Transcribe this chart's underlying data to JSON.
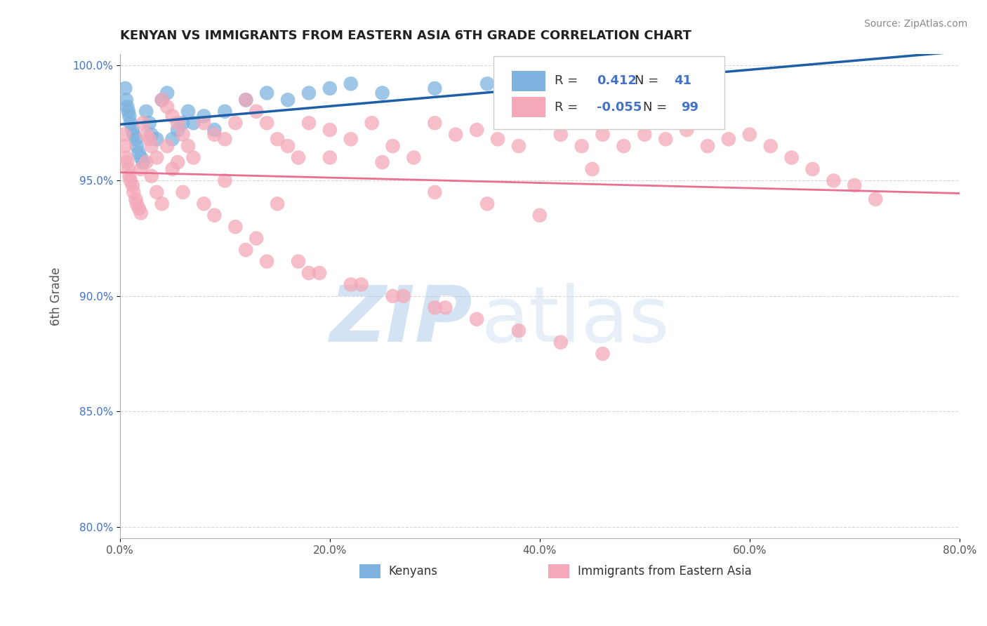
{
  "title": "KENYAN VS IMMIGRANTS FROM EASTERN ASIA 6TH GRADE CORRELATION CHART",
  "source": "Source: ZipAtlas.com",
  "ylabel": "6th Grade",
  "xlim": [
    0.0,
    0.8
  ],
  "ylim": [
    0.795,
    1.005
  ],
  "xticks": [
    0.0,
    0.2,
    0.4,
    0.6,
    0.8
  ],
  "xtick_labels": [
    "0.0%",
    "20.0%",
    "40.0%",
    "60.0%",
    "80.0%"
  ],
  "yticks": [
    0.8,
    0.85,
    0.9,
    0.95,
    1.0
  ],
  "ytick_labels": [
    "80.0%",
    "85.0%",
    "90.0%",
    "95.0%",
    "100.0%"
  ],
  "legend_labels": [
    "Kenyans",
    "Immigrants from Eastern Asia"
  ],
  "blue_R": 0.412,
  "blue_N": 41,
  "pink_R": -0.055,
  "pink_N": 99,
  "blue_color": "#7EB3E0",
  "pink_color": "#F4A8B8",
  "blue_line_color": "#1F5FA6",
  "pink_line_color": "#E87090",
  "watermark_zip": "ZIP",
  "watermark_atlas": "atlas",
  "blue_x": [
    0.005,
    0.006,
    0.007,
    0.008,
    0.009,
    0.01,
    0.012,
    0.013,
    0.015,
    0.016,
    0.018,
    0.02,
    0.022,
    0.025,
    0.028,
    0.03,
    0.035,
    0.04,
    0.045,
    0.05,
    0.055,
    0.06,
    0.065,
    0.07,
    0.08,
    0.09,
    0.1,
    0.12,
    0.14,
    0.16,
    0.18,
    0.2,
    0.22,
    0.25,
    0.3,
    0.35,
    0.38,
    0.4,
    0.45,
    0.5,
    0.55
  ],
  "blue_y": [
    0.99,
    0.985,
    0.982,
    0.98,
    0.978,
    0.975,
    0.972,
    0.97,
    0.968,
    0.965,
    0.962,
    0.96,
    0.958,
    0.98,
    0.975,
    0.97,
    0.968,
    0.985,
    0.988,
    0.968,
    0.972,
    0.975,
    0.98,
    0.975,
    0.978,
    0.972,
    0.98,
    0.985,
    0.988,
    0.985,
    0.988,
    0.99,
    0.992,
    0.988,
    0.99,
    0.992,
    0.988,
    0.99,
    0.985,
    0.988,
    0.992
  ],
  "pink_x": [
    0.004,
    0.005,
    0.006,
    0.007,
    0.008,
    0.009,
    0.01,
    0.012,
    0.013,
    0.015,
    0.016,
    0.018,
    0.02,
    0.022,
    0.025,
    0.028,
    0.03,
    0.035,
    0.04,
    0.045,
    0.05,
    0.055,
    0.06,
    0.065,
    0.07,
    0.08,
    0.09,
    0.1,
    0.11,
    0.12,
    0.13,
    0.14,
    0.15,
    0.16,
    0.17,
    0.18,
    0.2,
    0.22,
    0.24,
    0.26,
    0.28,
    0.3,
    0.32,
    0.34,
    0.36,
    0.38,
    0.4,
    0.42,
    0.44,
    0.46,
    0.48,
    0.5,
    0.52,
    0.54,
    0.56,
    0.58,
    0.6,
    0.62,
    0.64,
    0.66,
    0.68,
    0.7,
    0.72,
    0.02,
    0.025,
    0.03,
    0.035,
    0.04,
    0.045,
    0.05,
    0.055,
    0.06,
    0.1,
    0.15,
    0.2,
    0.25,
    0.3,
    0.35,
    0.4,
    0.45,
    0.12,
    0.14,
    0.18,
    0.22,
    0.26,
    0.3,
    0.34,
    0.38,
    0.42,
    0.46,
    0.08,
    0.09,
    0.11,
    0.13,
    0.17,
    0.19,
    0.23,
    0.27,
    0.31
  ],
  "pink_y": [
    0.97,
    0.965,
    0.96,
    0.958,
    0.955,
    0.952,
    0.95,
    0.948,
    0.945,
    0.942,
    0.94,
    0.938,
    0.936,
    0.975,
    0.97,
    0.968,
    0.965,
    0.96,
    0.985,
    0.982,
    0.978,
    0.975,
    0.97,
    0.965,
    0.96,
    0.975,
    0.97,
    0.968,
    0.975,
    0.985,
    0.98,
    0.975,
    0.968,
    0.965,
    0.96,
    0.975,
    0.972,
    0.968,
    0.975,
    0.965,
    0.96,
    0.975,
    0.97,
    0.972,
    0.968,
    0.965,
    0.975,
    0.97,
    0.965,
    0.97,
    0.965,
    0.97,
    0.968,
    0.972,
    0.965,
    0.968,
    0.97,
    0.965,
    0.96,
    0.955,
    0.95,
    0.948,
    0.942,
    0.955,
    0.958,
    0.952,
    0.945,
    0.94,
    0.965,
    0.955,
    0.958,
    0.945,
    0.95,
    0.94,
    0.96,
    0.958,
    0.945,
    0.94,
    0.935,
    0.955,
    0.92,
    0.915,
    0.91,
    0.905,
    0.9,
    0.895,
    0.89,
    0.885,
    0.88,
    0.875,
    0.94,
    0.935,
    0.93,
    0.925,
    0.915,
    0.91,
    0.905,
    0.9,
    0.895
  ]
}
